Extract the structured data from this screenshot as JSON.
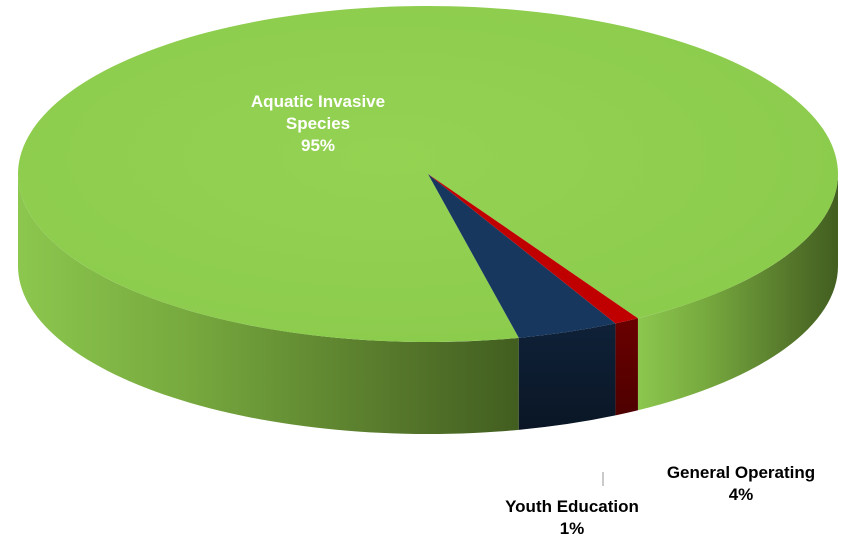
{
  "chart_data": {
    "type": "pie",
    "three_d": true,
    "title": "",
    "slices": [
      {
        "name": "Aquatic Invasive Species",
        "value": 95,
        "label_lines": [
          "Aquatic Invasive",
          "Species"
        ],
        "pct_label": "95%",
        "color": "#92D050"
      },
      {
        "name": "General Operating",
        "value": 4,
        "label_lines": [
          "General Operating"
        ],
        "pct_label": "4%",
        "color": "#17375E"
      },
      {
        "name": "Youth Education",
        "value": 1,
        "label_lines": [
          "Youth Education"
        ],
        "pct_label": "1%",
        "color": "#C00000"
      }
    ],
    "label_colors": {
      "inside": "#FFFFFF",
      "outside": "#000000"
    },
    "legend": "none"
  }
}
